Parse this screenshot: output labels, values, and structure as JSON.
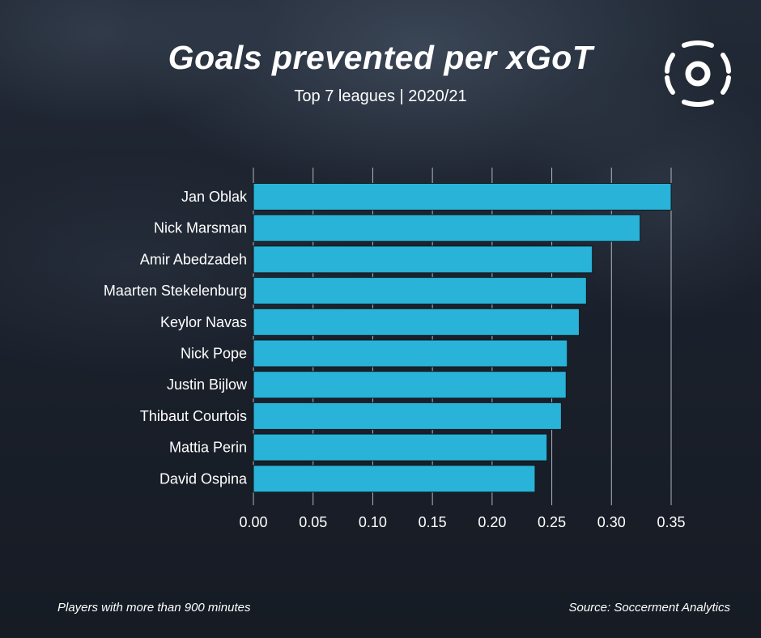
{
  "header": {
    "title": "Goals prevented per xGoT",
    "subtitle": "Top 7 leagues | 2020/21"
  },
  "footer": {
    "note": "Players with more than 900 minutes",
    "source": "Source: Soccerment Analytics"
  },
  "logo": {
    "icon": "soccerment-logo-icon"
  },
  "colors": {
    "bar": "#29b3d8",
    "bar_edge": "#0e1a22",
    "grid": "#c8ced6",
    "text": "#ffffff",
    "background": "#1a1f2a"
  },
  "chart_data": {
    "type": "bar",
    "orientation": "horizontal",
    "title": "Goals prevented per xGoT",
    "subtitle": "Top 7 leagues | 2020/21",
    "xlabel": "",
    "ylabel": "",
    "categories": [
      "Jan Oblak",
      "Nick Marsman",
      "Amir Abedzadeh",
      "Maarten Stekelenburg",
      "Keylor Navas",
      "Nick Pope",
      "Justin Bijlow",
      "Thibaut Courtois",
      "Mattia Perin",
      "David Ospina"
    ],
    "values": [
      0.35,
      0.324,
      0.284,
      0.279,
      0.273,
      0.263,
      0.262,
      0.258,
      0.246,
      0.236
    ],
    "xlim": [
      0,
      0.35
    ],
    "xticks": [
      "0.00",
      "0.05",
      "0.10",
      "0.15",
      "0.20",
      "0.25",
      "0.30",
      "0.35"
    ],
    "xtick_values": [
      0,
      0.05,
      0.1,
      0.15,
      0.2,
      0.25,
      0.3,
      0.35
    ],
    "grid": "vertical",
    "legend": "none"
  }
}
